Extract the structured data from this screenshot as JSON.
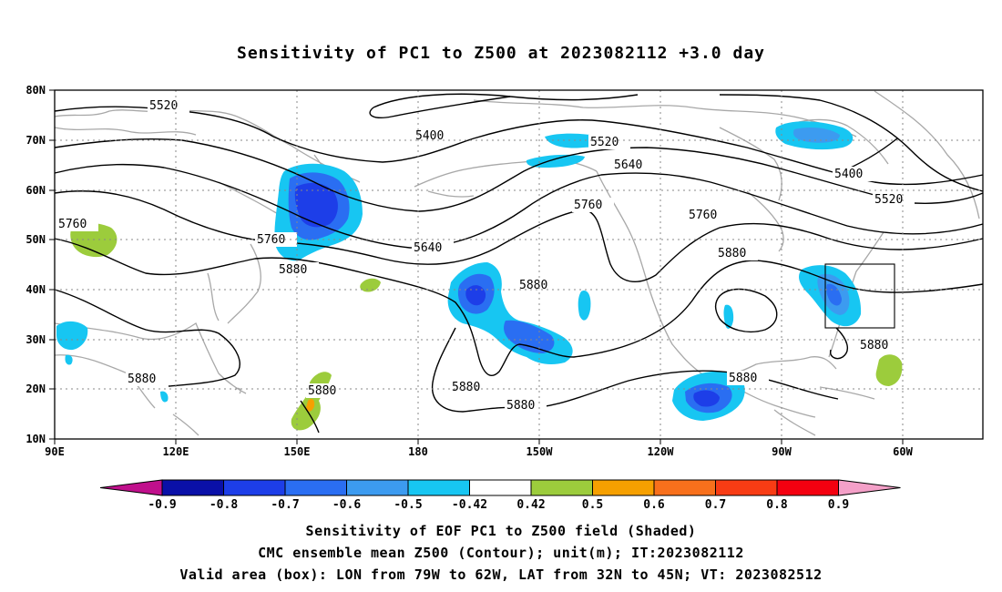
{
  "title": "Sensitivity of PC1 to Z500 at 2023082112 +3.0 day",
  "lat_labels": [
    "80N",
    "70N",
    "60N",
    "50N",
    "40N",
    "30N",
    "20N",
    "10N"
  ],
  "lon_labels": [
    "90E",
    "120E",
    "150E",
    "180",
    "150W",
    "120W",
    "90W",
    "60W"
  ],
  "contour_labels": [
    {
      "text": "5520"
    },
    {
      "text": "5400"
    },
    {
      "text": "5520"
    },
    {
      "text": "5640"
    },
    {
      "text": "5400"
    },
    {
      "text": "5520"
    },
    {
      "text": "5760"
    },
    {
      "text": "5760"
    },
    {
      "text": "5640"
    },
    {
      "text": "5760"
    },
    {
      "text": "5760"
    },
    {
      "text": "5880"
    },
    {
      "text": "5880"
    },
    {
      "text": "5880"
    },
    {
      "text": "5880"
    },
    {
      "text": "5880"
    },
    {
      "text": "5880"
    },
    {
      "text": "5880"
    },
    {
      "text": "5880"
    }
  ],
  "colorbar": {
    "labels": [
      "-0.9",
      "-0.8",
      "-0.7",
      "-0.6",
      "-0.5",
      "-0.42",
      "0.42",
      "0.5",
      "0.6",
      "0.7",
      "0.8",
      "0.9"
    ],
    "colors": [
      "#0a10a8",
      "#1d3ee8",
      "#2a6ef2",
      "#3c9bf0",
      "#17c6f2",
      "#ffffff",
      "#9ccc3c",
      "#f6a000",
      "#f8701c",
      "#f83c14",
      "#f40010"
    ],
    "end_low": "#c0108c",
    "end_high": "#f4a0c8"
  },
  "captions": {
    "line1": "Sensitivity of EOF PC1 to Z500 field (Shaded)",
    "line2": "CMC ensemble mean Z500 (Contour); unit(m); IT:2023082112",
    "line3": "Valid area (box): LON from 79W to 62W, LAT from 32N to 45N; VT: 2023082512"
  }
}
